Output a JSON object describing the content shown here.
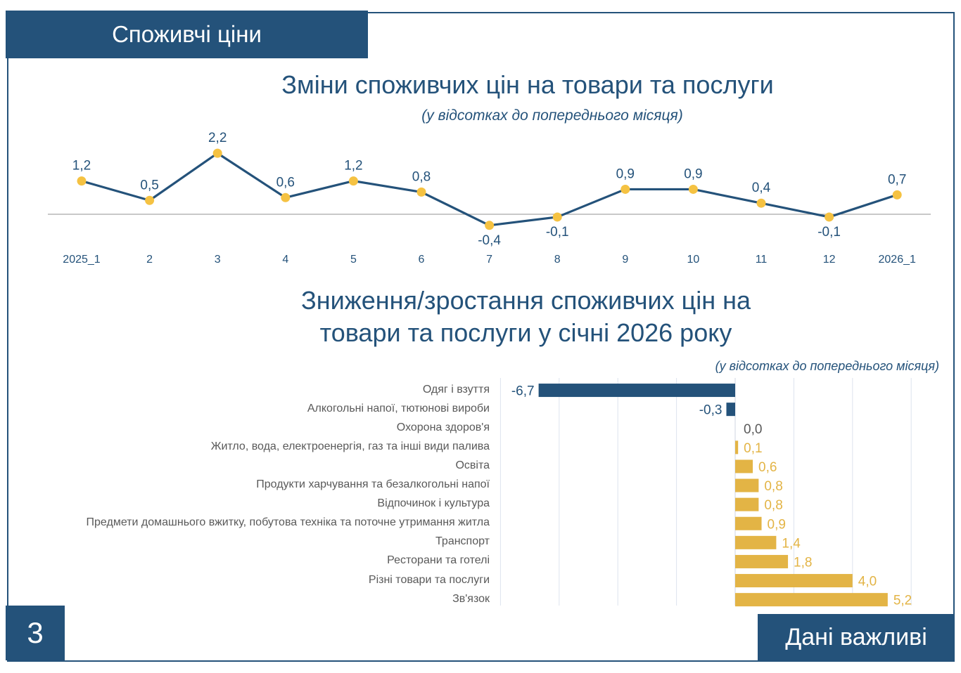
{
  "header": {
    "title": "Споживчі ціни"
  },
  "footer": {
    "page_number": "3",
    "brand": "Дані важливі"
  },
  "colors": {
    "navy": "#24527a",
    "gold": "#e3b445",
    "marker": "#f5c242",
    "grid": "#dde3ee",
    "axis": "#a6a6a6"
  },
  "chart_data": [
    {
      "type": "line",
      "title": "Зміни споживчих цін на товари та послуги",
      "subtitle": "(у відсотках до попереднього місяця)",
      "xlabel": "",
      "ylabel": "",
      "categories": [
        "2025_1",
        "2",
        "3",
        "4",
        "5",
        "6",
        "7",
        "8",
        "9",
        "10",
        "11",
        "12",
        "2026_1"
      ],
      "values": [
        1.2,
        0.5,
        2.2,
        0.6,
        1.2,
        0.8,
        -0.4,
        -0.1,
        0.9,
        0.9,
        0.4,
        -0.1,
        0.7
      ],
      "value_labels": [
        "1,2",
        "0,5",
        "2,2",
        "0,6",
        "1,2",
        "0,8",
        "-0,4",
        "-0,1",
        "0,9",
        "0,9",
        "0,4",
        "-0,1",
        "0,7"
      ],
      "ylim": [
        -0.6,
        2.5
      ],
      "grid": false
    },
    {
      "type": "bar",
      "orientation": "horizontal",
      "title": "Зниження/зростання споживчих цін на товари та послуги у січні 2026 року",
      "title_lines": [
        "Зниження/зростання споживчих цін на",
        "товари та послуги у січні 2026 року"
      ],
      "subtitle": "(у відсотках до попереднього місяця)",
      "categories": [
        "Одяг і взуття",
        "Алкогольні напої, тютюнові вироби",
        "Охорона здоров'я",
        "Житло, вода, електроенергія, газ та інші види палива",
        "Освіта",
        "Продукти харчування та безалкогольні напої",
        "Відпочинок і культура",
        "Предмети домашнього вжитку, побутова техніка та поточне утримання житла",
        "Транспорт",
        "Ресторани та готелі",
        "Різні товари та послуги",
        "Зв'язок"
      ],
      "values": [
        -6.7,
        -0.3,
        0.0,
        0.1,
        0.6,
        0.8,
        0.8,
        0.9,
        1.4,
        1.8,
        4.0,
        5.2
      ],
      "value_labels": [
        "-6,7",
        "-0,3",
        "0,0",
        "0,1",
        "0,6",
        "0,8",
        "0,8",
        "0,9",
        "1,4",
        "1,8",
        "4,0",
        "5,2"
      ],
      "xlim": [
        -8,
        6
      ],
      "grid": true
    }
  ]
}
